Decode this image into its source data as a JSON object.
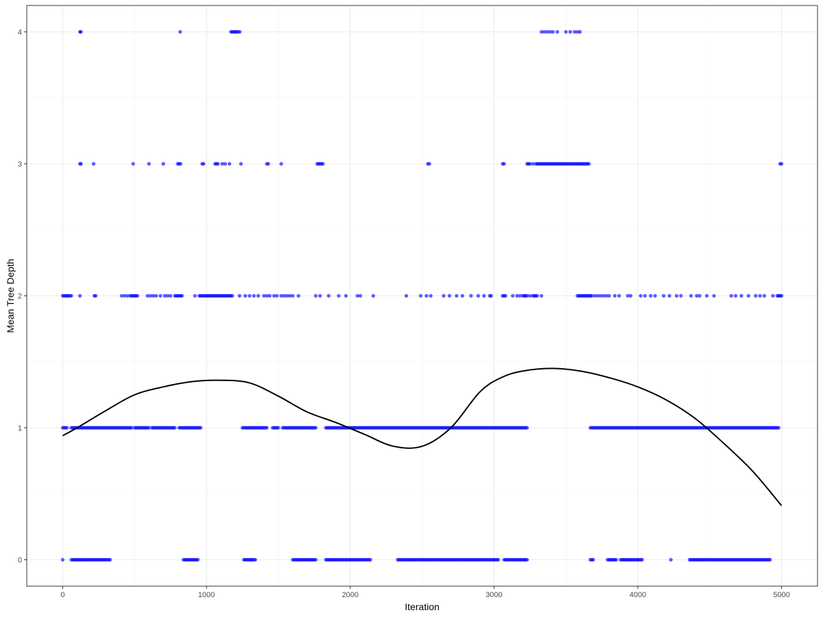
{
  "chart_data": {
    "type": "scatter",
    "title": "",
    "xlabel": "Iteration",
    "ylabel": "Mean Tree Depth",
    "xlim": [
      -250,
      5250
    ],
    "ylim": [
      -0.2,
      4.2
    ],
    "x_ticks": [
      0,
      1000,
      2000,
      3000,
      4000,
      5000
    ],
    "y_ticks": [
      0,
      1,
      2,
      3,
      4
    ],
    "x_tick_labels": [
      "0",
      "1000",
      "2000",
      "3000",
      "4000",
      "5000"
    ],
    "y_tick_labels": [
      "0",
      "1",
      "2",
      "3",
      "4"
    ],
    "grid": true,
    "legend": "none",
    "point_color": "#0000ff",
    "line_color": "#000000",
    "series": [
      {
        "kind": "points",
        "points_by_level": [
          {
            "y": 4,
            "x": [
              120,
              127,
              817,
              1170,
              1180,
              1190,
              1200,
              1210,
              1220,
              1232,
              3330,
              3350,
              3370,
              3390,
              3410,
              3440,
              3500,
              3530,
              3560,
              3580,
              3598
            ]
          },
          {
            "y": 3,
            "x": [
              120,
              127,
              215,
              490,
              600,
              700,
              800,
              810,
              820,
              970,
              980,
              1060,
              1070,
              1080,
              1110,
              1130,
              1160,
              1240,
              1420,
              1430,
              1520,
              1770,
              1780,
              1790,
              1800,
              1810,
              2540,
              2550,
              3060,
              3070,
              3230,
              3240,
              3250,
              3270,
              3290,
              3300,
              3310,
              3320,
              3330,
              3340,
              3350,
              3360,
              3370,
              3380,
              3390,
              3400,
              3410,
              3420,
              3430,
              3440,
              3450,
              3460,
              3470,
              3480,
              3490,
              3500,
              3510,
              3520,
              3530,
              3540,
              3550,
              3560,
              3570,
              3580,
              3590,
              3600,
              3610,
              3620,
              3630,
              3640,
              3650,
              3660,
              4990,
              5000
            ]
          },
          {
            "y": 2,
            "x_ranges": [
              [
                0,
                60,
                10
              ],
              [
                230,
                230,
                1
              ],
              [
                950,
                1180,
                10
              ],
              [
                3580,
                3680,
                10
              ],
              [
                4970,
                5000,
                10
              ]
            ],
            "x": [
              120,
              220,
              410,
              430,
              450,
              470,
              480,
              490,
              500,
              510,
              520,
              590,
              610,
              630,
              650,
              680,
              710,
              730,
              750,
              780,
              790,
              800,
              810,
              820,
              830,
              920,
              1230,
              1270,
              1300,
              1330,
              1360,
              1400,
              1420,
              1440,
              1470,
              1490,
              1520,
              1540,
              1560,
              1580,
              1600,
              1640,
              1760,
              1790,
              1850,
              1920,
              1970,
              2050,
              2070,
              2160,
              2390,
              2490,
              2530,
              2560,
              2650,
              2690,
              2740,
              2780,
              2840,
              2890,
              2930,
              2970,
              2980,
              3060,
              3070,
              3080,
              3130,
              3160,
              3180,
              3200,
              3210,
              3220,
              3230,
              3250,
              3270,
              3280,
              3290,
              3300,
              3330,
              3700,
              3720,
              3740,
              3760,
              3780,
              3800,
              3840,
              3870,
              3930,
              3950,
              4020,
              4050,
              4090,
              4120,
              4180,
              4220,
              4270,
              4300,
              4370,
              4410,
              4430,
              4480,
              4530,
              4650,
              4680,
              4720,
              4770,
              4820,
              4850,
              4880,
              4940
            ]
          },
          {
            "y": 1,
            "x_ranges": [
              [
                0,
                30,
                10
              ],
              [
                60,
                480,
                10
              ],
              [
                500,
                600,
                10
              ],
              [
                620,
                780,
                10
              ],
              [
                810,
                960,
                10
              ],
              [
                1250,
                1420,
                10
              ],
              [
                1460,
                1500,
                10
              ],
              [
                1530,
                1760,
                10
              ],
              [
                1830,
                3230,
                10
              ],
              [
                3670,
                4980,
                10
              ]
            ],
            "x": []
          },
          {
            "y": 0,
            "x_ranges": [
              [
                60,
                200,
                10
              ],
              [
                210,
                330,
                10
              ],
              [
                840,
                940,
                10
              ],
              [
                1260,
                1340,
                10
              ],
              [
                1600,
                1760,
                10
              ],
              [
                1830,
                2140,
                10
              ],
              [
                2330,
                2460,
                10
              ],
              [
                2470,
                2860,
                10
              ],
              [
                2870,
                3030,
                10
              ],
              [
                3070,
                3230,
                10
              ],
              [
                3670,
                3690,
                10
              ],
              [
                3790,
                3850,
                10
              ],
              [
                3880,
                4030,
                10
              ],
              [
                4360,
                4920,
                10
              ]
            ],
            "x": [
              0,
              4230
            ]
          }
        ]
      },
      {
        "kind": "smooth",
        "x": [
          0,
          100,
          300,
          500,
          700,
          900,
          1100,
          1300,
          1500,
          1700,
          1900,
          2100,
          2300,
          2500,
          2700,
          2900,
          3050,
          3200,
          3400,
          3600,
          3800,
          4000,
          4200,
          4400,
          4600,
          4800,
          5000
        ],
        "y": [
          0.94,
          1.0,
          1.13,
          1.25,
          1.31,
          1.35,
          1.36,
          1.34,
          1.24,
          1.12,
          1.04,
          0.95,
          0.86,
          0.86,
          1.0,
          1.27,
          1.38,
          1.43,
          1.45,
          1.43,
          1.38,
          1.31,
          1.21,
          1.07,
          0.88,
          0.67,
          0.41
        ]
      }
    ]
  }
}
